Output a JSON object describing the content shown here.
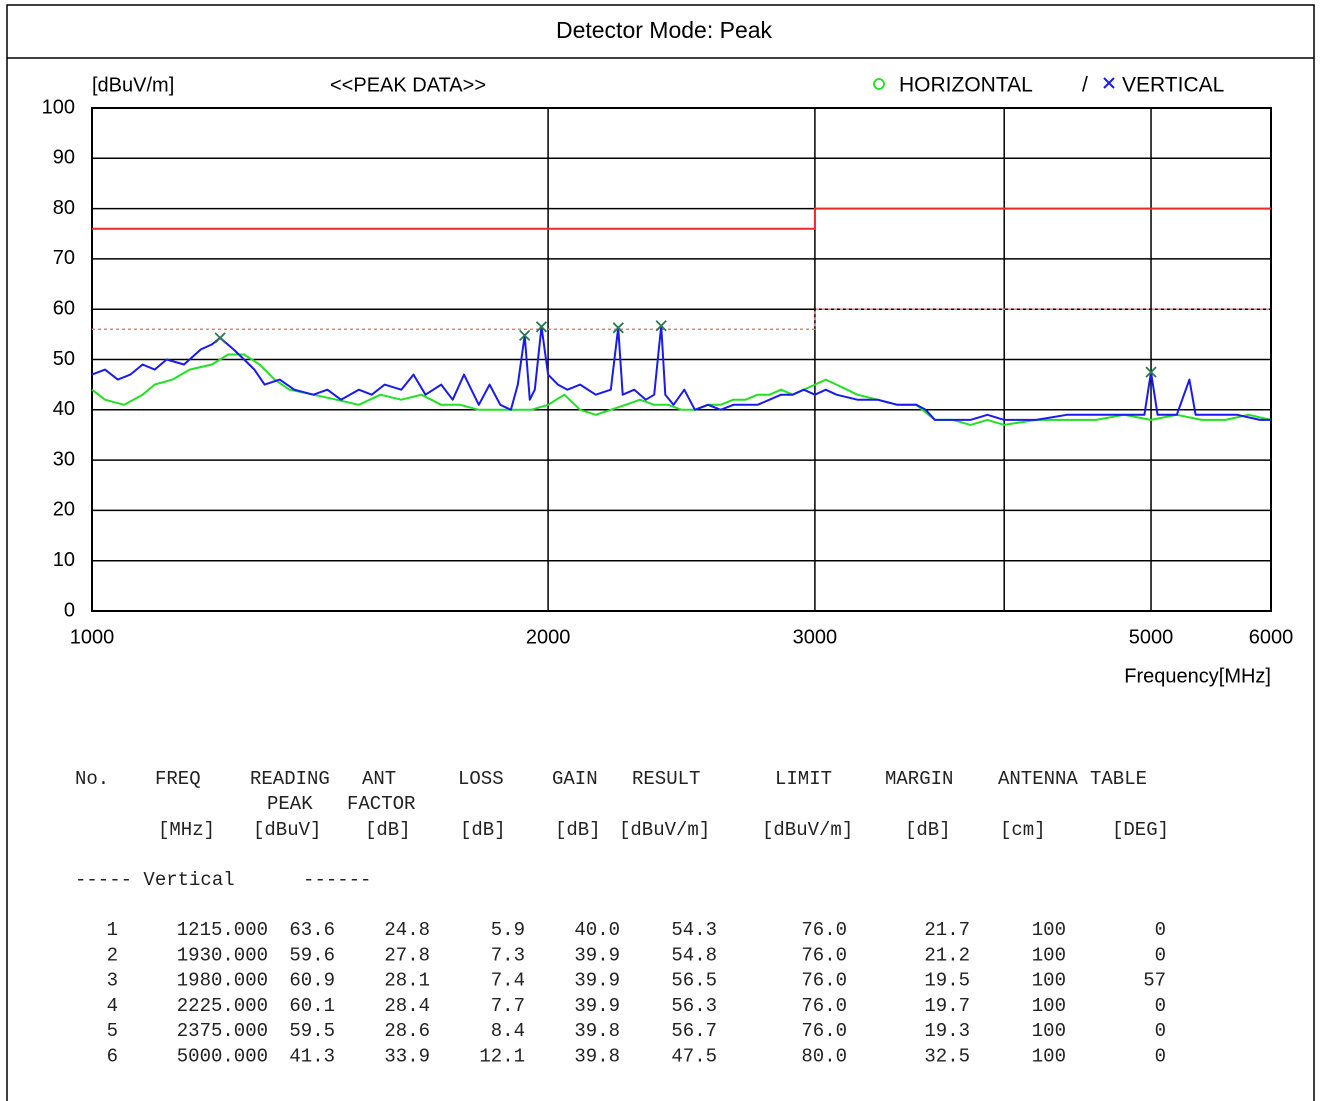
{
  "header": {
    "title": "Detector Mode: Peak"
  },
  "chart_data": {
    "type": "line",
    "y_label": "[dBuV/m]",
    "title": "<<PEAK DATA>>",
    "x_label": "Frequency[MHz]",
    "xscale": "log",
    "xlim": [
      1000,
      6000
    ],
    "xticks": [
      1000,
      2000,
      3000,
      5000,
      6000
    ],
    "xminor_ticks": [
      4000
    ],
    "ylim": [
      0,
      100
    ],
    "yticks": [
      0,
      10,
      20,
      30,
      40,
      50,
      60,
      70,
      80,
      90,
      100
    ],
    "grid": true,
    "legend_separator": "/",
    "series": [
      {
        "name": "HORIZONTAL",
        "color": "#22e022",
        "x": [
          1000,
          1020,
          1050,
          1080,
          1100,
          1130,
          1160,
          1200,
          1230,
          1260,
          1290,
          1320,
          1350,
          1400,
          1450,
          1500,
          1550,
          1600,
          1650,
          1700,
          1750,
          1800,
          1850,
          1900,
          1950,
          2000,
          2050,
          2100,
          2150,
          2200,
          2250,
          2300,
          2350,
          2400,
          2450,
          2500,
          2550,
          2600,
          2650,
          2700,
          2750,
          2800,
          2850,
          2900,
          2950,
          3000,
          3050,
          3100,
          3150,
          3200,
          3300,
          3400,
          3500,
          3600,
          3700,
          3800,
          3900,
          4000,
          4200,
          4400,
          4600,
          4800,
          5000,
          5200,
          5400,
          5600,
          5800,
          6000
        ],
        "values": [
          44,
          42,
          41,
          43,
          45,
          46,
          48,
          49,
          51,
          51,
          49,
          46,
          44,
          43,
          42,
          41,
          43,
          42,
          43,
          41,
          41,
          40,
          40,
          40,
          40,
          41,
          43,
          40,
          39,
          40,
          41,
          42,
          41,
          41,
          40,
          40,
          41,
          41,
          42,
          42,
          43,
          43,
          44,
          43,
          44,
          45,
          46,
          45,
          44,
          43,
          42,
          41,
          41,
          38,
          38,
          37,
          38,
          37,
          38,
          38,
          38,
          39,
          38,
          39,
          38,
          38,
          39,
          38
        ]
      },
      {
        "name": "VERTICAL",
        "color": "#1a1aee",
        "x": [
          1000,
          1020,
          1040,
          1060,
          1080,
          1100,
          1120,
          1150,
          1180,
          1200,
          1215,
          1240,
          1260,
          1280,
          1300,
          1330,
          1360,
          1400,
          1430,
          1460,
          1500,
          1530,
          1560,
          1600,
          1630,
          1660,
          1700,
          1730,
          1760,
          1800,
          1830,
          1860,
          1890,
          1910,
          1930,
          1945,
          1960,
          1980,
          2000,
          2030,
          2060,
          2100,
          2150,
          2200,
          2225,
          2240,
          2280,
          2320,
          2350,
          2375,
          2390,
          2420,
          2460,
          2500,
          2550,
          2600,
          2650,
          2700,
          2750,
          2800,
          2850,
          2900,
          2950,
          3000,
          3050,
          3100,
          3200,
          3300,
          3400,
          3500,
          3550,
          3600,
          3700,
          3800,
          3900,
          4000,
          4200,
          4400,
          4600,
          4800,
          4950,
          5000,
          5050,
          5200,
          5300,
          5350,
          5500,
          5700,
          5900,
          6000
        ],
        "values": [
          47,
          48,
          46,
          47,
          49,
          48,
          50,
          49,
          52,
          53,
          54.3,
          52,
          50,
          48,
          45,
          46,
          44,
          43,
          44,
          42,
          44,
          43,
          45,
          44,
          47,
          43,
          45,
          42,
          47,
          41,
          45,
          41,
          40,
          45,
          54.8,
          42,
          44,
          56.5,
          47,
          45,
          44,
          45,
          43,
          44,
          56.3,
          43,
          44,
          42,
          43,
          56.7,
          43,
          41,
          44,
          40,
          41,
          40,
          41,
          41,
          41,
          42,
          43,
          43,
          44,
          43,
          44,
          43,
          42,
          42,
          41,
          41,
          40,
          38,
          38,
          38,
          39,
          38,
          38,
          39,
          39,
          39,
          39,
          47.5,
          39,
          39,
          46,
          39,
          39,
          39,
          38,
          38
        ]
      }
    ],
    "limit_lines": [
      {
        "color": "#e82a2a",
        "style": "solid",
        "x": [
          1000,
          3000,
          3000,
          6000
        ],
        "values": [
          76,
          76,
          80,
          80
        ]
      },
      {
        "color": "#e88080",
        "style": "dotted",
        "x": [
          1000,
          3000,
          3000,
          6000
        ],
        "values": [
          56,
          56,
          60,
          60
        ]
      }
    ],
    "markers": {
      "color": "#2a7a50",
      "x": [
        1215,
        1930,
        1980,
        2225,
        2375,
        5000
      ],
      "values": [
        54.3,
        54.8,
        56.5,
        56.3,
        56.7,
        47.5
      ]
    }
  },
  "table": {
    "columns": [
      {
        "name": "No."
      },
      {
        "name": "FREQ",
        "unit": "[MHz]"
      },
      {
        "name": "READING",
        "name2": "PEAK",
        "unit": "[dBuV]"
      },
      {
        "name": "ANT",
        "name2": "FACTOR",
        "unit": "[dB]"
      },
      {
        "name": "LOSS",
        "unit": "[dB]"
      },
      {
        "name": "GAIN",
        "unit": "[dB]"
      },
      {
        "name": "RESULT",
        "unit": "[dBuV/m]"
      },
      {
        "name": "LIMIT",
        "unit": "[dBuV/m]"
      },
      {
        "name": "MARGIN",
        "unit": "[dB]"
      },
      {
        "name": "ANTENNA",
        "unit": "[cm]"
      },
      {
        "name": "TABLE",
        "unit": "[DEG]"
      }
    ],
    "section": "----- Vertical      ------",
    "rows": [
      [
        "1",
        "1215.000",
        "63.6",
        "24.8",
        "5.9",
        "40.0",
        "54.3",
        "76.0",
        "21.7",
        "100",
        "0"
      ],
      [
        "2",
        "1930.000",
        "59.6",
        "27.8",
        "7.3",
        "39.9",
        "54.8",
        "76.0",
        "21.2",
        "100",
        "0"
      ],
      [
        "3",
        "1980.000",
        "60.9",
        "28.1",
        "7.4",
        "39.9",
        "56.5",
        "76.0",
        "19.5",
        "100",
        "57"
      ],
      [
        "4",
        "2225.000",
        "60.1",
        "28.4",
        "7.7",
        "39.9",
        "56.3",
        "76.0",
        "19.7",
        "100",
        "0"
      ],
      [
        "5",
        "2375.000",
        "59.5",
        "28.6",
        "8.4",
        "39.8",
        "56.7",
        "76.0",
        "19.3",
        "100",
        "0"
      ],
      [
        "6",
        "5000.000",
        "41.3",
        "33.9",
        "12.1",
        "39.8",
        "47.5",
        "80.0",
        "32.5",
        "100",
        "0"
      ]
    ]
  }
}
